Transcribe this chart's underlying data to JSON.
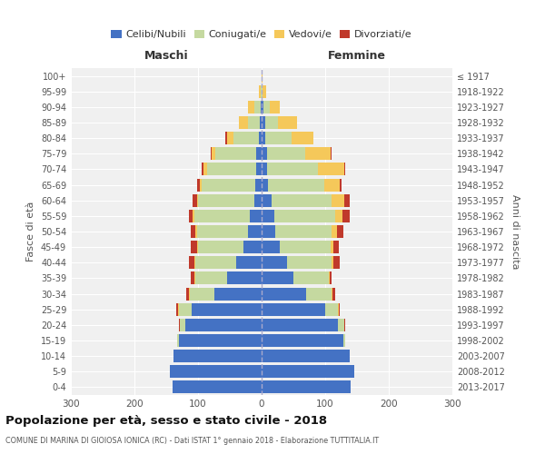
{
  "age_groups": [
    "0-4",
    "5-9",
    "10-14",
    "15-19",
    "20-24",
    "25-29",
    "30-34",
    "35-39",
    "40-44",
    "45-49",
    "50-54",
    "55-59",
    "60-64",
    "65-69",
    "70-74",
    "75-79",
    "80-84",
    "85-89",
    "90-94",
    "95-99",
    "100+"
  ],
  "birth_years": [
    "2013-2017",
    "2008-2012",
    "2003-2007",
    "1998-2002",
    "1993-1997",
    "1988-1992",
    "1983-1987",
    "1978-1982",
    "1973-1977",
    "1968-1972",
    "1963-1967",
    "1958-1962",
    "1953-1957",
    "1948-1952",
    "1943-1947",
    "1938-1942",
    "1933-1937",
    "1928-1932",
    "1923-1927",
    "1918-1922",
    "≤ 1917"
  ],
  "male_celibi": [
    140,
    145,
    138,
    130,
    120,
    110,
    75,
    55,
    40,
    28,
    22,
    18,
    12,
    10,
    8,
    8,
    5,
    3,
    2,
    0,
    0
  ],
  "male_coniugati": [
    0,
    0,
    1,
    3,
    8,
    20,
    38,
    50,
    65,
    72,
    80,
    88,
    88,
    85,
    78,
    65,
    40,
    18,
    10,
    2,
    0
  ],
  "male_vedovi": [
    0,
    0,
    0,
    0,
    1,
    1,
    1,
    1,
    1,
    1,
    2,
    2,
    2,
    2,
    5,
    5,
    10,
    15,
    10,
    2,
    0
  ],
  "male_divorziati": [
    0,
    0,
    0,
    0,
    1,
    3,
    5,
    5,
    8,
    10,
    8,
    6,
    6,
    5,
    3,
    2,
    2,
    0,
    0,
    0,
    0
  ],
  "female_celibi": [
    140,
    145,
    138,
    128,
    120,
    100,
    70,
    50,
    40,
    28,
    22,
    20,
    15,
    10,
    8,
    8,
    5,
    5,
    3,
    0,
    0
  ],
  "female_coniugati": [
    0,
    0,
    1,
    3,
    10,
    20,
    40,
    55,
    70,
    80,
    88,
    95,
    95,
    88,
    80,
    60,
    42,
    20,
    10,
    2,
    0
  ],
  "female_vedovi": [
    0,
    0,
    0,
    0,
    0,
    1,
    1,
    2,
    3,
    5,
    8,
    12,
    20,
    25,
    42,
    40,
    35,
    30,
    15,
    5,
    2
  ],
  "female_divorziati": [
    0,
    0,
    0,
    0,
    1,
    2,
    5,
    3,
    10,
    8,
    10,
    12,
    8,
    2,
    2,
    2,
    0,
    0,
    0,
    0,
    0
  ],
  "color_celibi": "#4472c4",
  "color_coniugati": "#c5d9a0",
  "color_vedovi": "#f5c85a",
  "color_divorziati": "#c0392b",
  "title": "Popolazione per età, sesso e stato civile - 2018",
  "subtitle": "COMUNE DI MARINA DI GIOIOSA IONICA (RC) - Dati ISTAT 1° gennaio 2018 - Elaborazione TUTTITALIA.IT",
  "xlabel_left": "Maschi",
  "xlabel_right": "Femmine",
  "ylabel": "Fasce di età",
  "ylabel_right": "Anni di nascita",
  "xlim": 300,
  "bg_color": "#f0f0f0"
}
